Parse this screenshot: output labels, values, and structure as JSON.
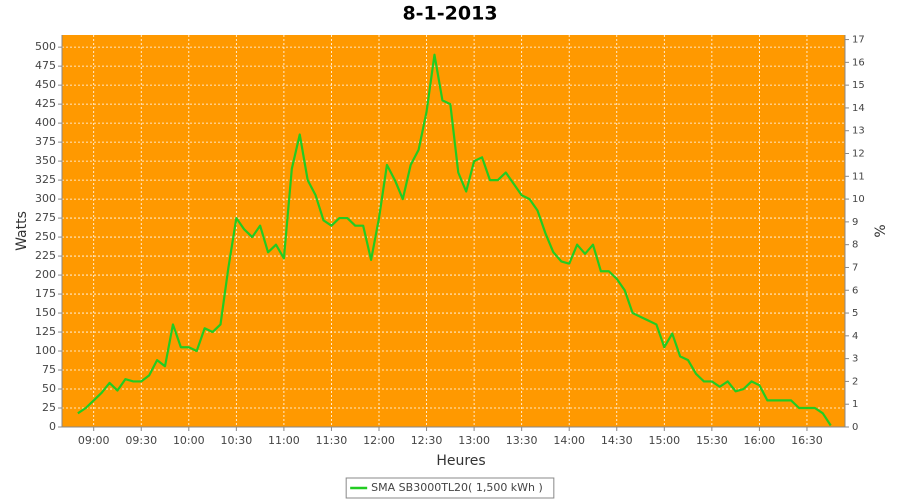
{
  "chart_data": {
    "type": "line",
    "title": "8-1-2013",
    "x_label": "Heures",
    "y_label": "Watts",
    "y2_label": "%",
    "x": [
      "08:50",
      "08:55",
      "09:00",
      "09:05",
      "09:10",
      "09:15",
      "09:20",
      "09:25",
      "09:30",
      "09:35",
      "09:40",
      "09:45",
      "09:50",
      "09:55",
      "10:00",
      "10:05",
      "10:10",
      "10:15",
      "10:20",
      "10:25",
      "10:30",
      "10:35",
      "10:40",
      "10:45",
      "10:50",
      "10:55",
      "11:00",
      "11:05",
      "11:10",
      "11:15",
      "11:20",
      "11:25",
      "11:30",
      "11:35",
      "11:40",
      "11:45",
      "11:50",
      "11:55",
      "12:00",
      "12:05",
      "12:10",
      "12:15",
      "12:20",
      "12:25",
      "12:30",
      "12:35",
      "12:40",
      "12:45",
      "12:50",
      "12:55",
      "13:00",
      "13:05",
      "13:10",
      "13:15",
      "13:20",
      "13:25",
      "13:30",
      "13:35",
      "13:40",
      "13:45",
      "13:50",
      "13:55",
      "14:00",
      "14:05",
      "14:10",
      "14:15",
      "14:20",
      "14:25",
      "14:30",
      "14:35",
      "14:40",
      "14:45",
      "14:50",
      "14:55",
      "15:00",
      "15:05",
      "15:10",
      "15:15",
      "15:20",
      "15:25",
      "15:30",
      "15:35",
      "15:40",
      "15:45",
      "15:50",
      "15:55",
      "16:00",
      "16:05",
      "16:10",
      "16:15",
      "16:20",
      "16:25",
      "16:30",
      "16:35",
      "16:40",
      "16:45"
    ],
    "series": [
      {
        "name": "SMA SB3000TL20( 1,500 kWh )",
        "color": "#22cc22",
        "values": [
          18,
          25,
          35,
          45,
          58,
          48,
          63,
          60,
          60,
          68,
          88,
          80,
          135,
          105,
          105,
          100,
          130,
          125,
          135,
          210,
          275,
          260,
          250,
          265,
          230,
          240,
          222,
          340,
          385,
          325,
          305,
          272,
          265,
          275,
          275,
          265,
          265,
          220,
          275,
          345,
          325,
          300,
          345,
          365,
          415,
          490,
          430,
          425,
          335,
          310,
          350,
          355,
          325,
          325,
          335,
          320,
          305,
          300,
          285,
          255,
          230,
          218,
          215,
          240,
          228,
          240,
          205,
          205,
          195,
          180,
          150,
          145,
          140,
          135,
          105,
          123,
          93,
          88,
          70,
          60,
          60,
          53,
          60,
          47,
          50,
          60,
          55,
          35,
          35,
          35,
          35,
          25,
          25,
          25,
          18,
          2
        ]
      }
    ],
    "xlim": [
      "08:40",
      "16:54"
    ],
    "xticks": [
      "09:00",
      "09:30",
      "10:00",
      "10:30",
      "11:00",
      "11:30",
      "12:00",
      "12:30",
      "13:00",
      "13:30",
      "14:00",
      "14:30",
      "15:00",
      "15:30",
      "16:00",
      "16:30"
    ],
    "ylim": [
      0,
      516
    ],
    "yticks": [
      0,
      25,
      50,
      75,
      100,
      125,
      150,
      175,
      200,
      225,
      250,
      275,
      300,
      325,
      350,
      375,
      400,
      425,
      450,
      475,
      500
    ],
    "y2lim": [
      0,
      17.2
    ],
    "y2ticks": [
      0,
      1,
      2,
      3,
      4,
      5,
      6,
      7,
      8,
      9,
      10,
      11,
      12,
      13,
      14,
      15,
      16,
      17
    ],
    "grid": true,
    "background": "#ff9900",
    "legend": "bottom"
  }
}
